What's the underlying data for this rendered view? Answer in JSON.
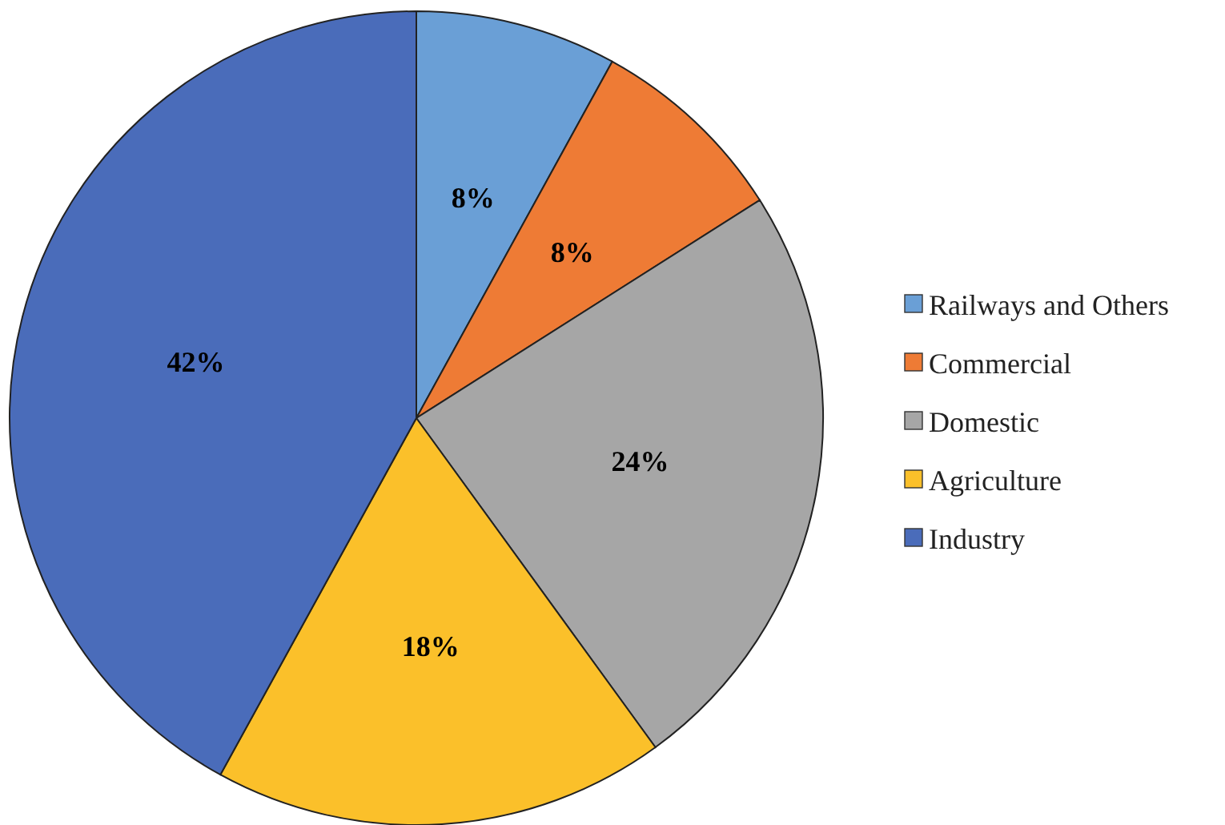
{
  "chart_data": {
    "type": "pie",
    "categories": [
      "Railways and Others",
      "Commercial",
      "Domestic",
      "Agriculture",
      "Industry"
    ],
    "values": [
      8,
      8,
      24,
      18,
      42
    ],
    "colors": [
      "#6a9fd6",
      "#ee7b35",
      "#a6a6a6",
      "#fbc02a",
      "#4a6cba"
    ],
    "value_labels": [
      "8%",
      "8%",
      "24%",
      "18%",
      "42%"
    ],
    "legend": "right"
  }
}
